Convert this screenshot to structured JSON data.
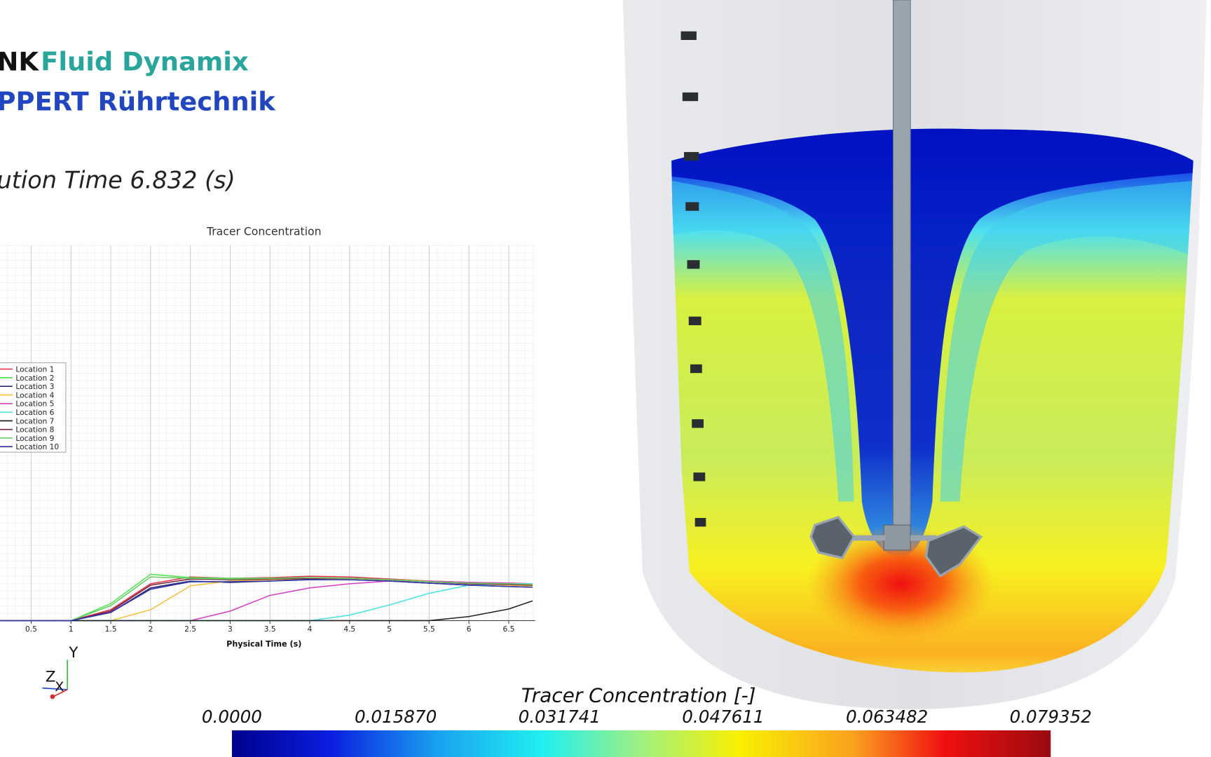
{
  "header": {
    "brand_a": "NK",
    "brand_b": "Fluid Dynamix",
    "company": "PPERT Rührtechnik",
    "time": "ution Time 6.832 (s)"
  },
  "chart_data": {
    "type": "line",
    "title": "Tracer Concentration",
    "x_label": "Physical Time (s)",
    "x": [
      0,
      0.5,
      1,
      1.5,
      2,
      2.5,
      3,
      3.5,
      4,
      4.5,
      5,
      5.5,
      6,
      6.5,
      6.8
    ],
    "xlim": [
      0,
      6.832
    ],
    "xticks": [
      0.5,
      1,
      1.5,
      2,
      2.5,
      3,
      3.5,
      4,
      4.5,
      5,
      5.5,
      6,
      6.5
    ],
    "ylim": [
      0,
      0.55
    ],
    "grid": true,
    "legend": "left",
    "series": [
      {
        "name": "Location 1",
        "color": "#e0334a",
        "values": [
          0,
          0,
          0,
          0.016,
          0.054,
          0.064,
          0.062,
          0.063,
          0.065,
          0.064,
          0.061,
          0.058,
          0.056,
          0.055,
          0.054
        ]
      },
      {
        "name": "Location 2",
        "color": "#4fe34f",
        "values": [
          0,
          0,
          0,
          0.025,
          0.068,
          0.063,
          0.062,
          0.062,
          0.063,
          0.062,
          0.06,
          0.058,
          0.056,
          0.054,
          0.053
        ]
      },
      {
        "name": "Location 3",
        "color": "#2b2b6b",
        "values": [
          0,
          0,
          0,
          0.012,
          0.048,
          0.058,
          0.056,
          0.058,
          0.061,
          0.06,
          0.058,
          0.055,
          0.052,
          0.05,
          0.049
        ]
      },
      {
        "name": "Location 4",
        "color": "#f5c242",
        "values": [
          0,
          0,
          0,
          0,
          0.016,
          0.051,
          0.058,
          0.06,
          0.062,
          0.061,
          0.06,
          0.058,
          0.054,
          0.052,
          0.051
        ]
      },
      {
        "name": "Location 5",
        "color": "#d63fc6",
        "values": [
          0,
          0,
          0,
          0,
          0,
          0,
          0.014,
          0.037,
          0.048,
          0.054,
          0.058,
          0.058,
          0.056,
          0.055,
          0.054
        ]
      },
      {
        "name": "Location 6",
        "color": "#4de3e3",
        "values": [
          0,
          0,
          0,
          0,
          0,
          0,
          0,
          0,
          0,
          0.008,
          0.023,
          0.04,
          0.052,
          0.054,
          0.054
        ]
      },
      {
        "name": "Location 7",
        "color": "#222222",
        "values": [
          0,
          0,
          0,
          0,
          0,
          0,
          0,
          0,
          0,
          0,
          0,
          0,
          0.006,
          0.017,
          0.029
        ]
      },
      {
        "name": "Location 8",
        "color": "#7a1f3a",
        "values": [
          0,
          0,
          0,
          0.014,
          0.052,
          0.061,
          0.06,
          0.061,
          0.062,
          0.062,
          0.06,
          0.057,
          0.054,
          0.053,
          0.052
        ]
      },
      {
        "name": "Location 9",
        "color": "#66cc66",
        "values": [
          0,
          0,
          0,
          0.022,
          0.064,
          0.062,
          0.061,
          0.062,
          0.063,
          0.062,
          0.06,
          0.057,
          0.055,
          0.054,
          0.053
        ]
      },
      {
        "name": "Location 10",
        "color": "#3333aa",
        "values": [
          0,
          0,
          0,
          0.012,
          0.046,
          0.057,
          0.057,
          0.058,
          0.06,
          0.06,
          0.058,
          0.055,
          0.052,
          0.05,
          0.049
        ]
      }
    ]
  },
  "triad": {
    "y": "Y",
    "z": "Z",
    "x": "X"
  },
  "colorbar": {
    "title": "Tracer Concentration [-]",
    "lim": [
      0,
      0.079352
    ],
    "ticks": [
      {
        "value": 0,
        "label": "0.0000"
      },
      {
        "value": 0.01587,
        "label": "0.015870"
      },
      {
        "value": 0.031741,
        "label": "0.031741"
      },
      {
        "value": 0.047611,
        "label": "0.047611"
      },
      {
        "value": 0.063482,
        "label": "0.063482"
      },
      {
        "value": 0.079352,
        "label": "0.079352"
      }
    ]
  }
}
